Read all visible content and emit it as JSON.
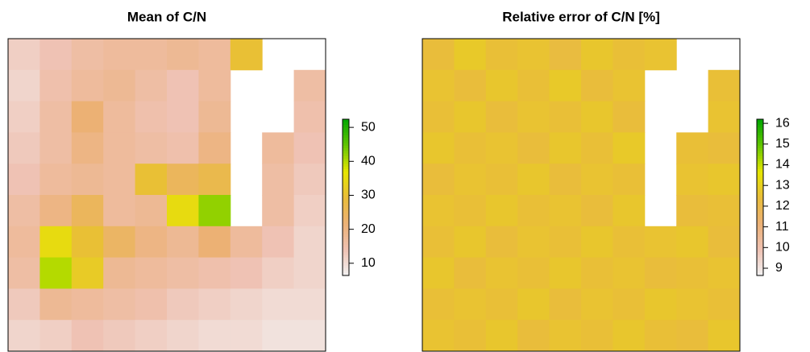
{
  "chart_data": [
    {
      "type": "heatmap",
      "title": "Mean of C/N",
      "zlim": [
        6.4,
        52.4
      ],
      "zticks": [
        10,
        20,
        30,
        40,
        50
      ],
      "colors": [
        "#F2F2F2",
        "#EFC2B3",
        "#ECB176",
        "#E9BD3A",
        "#E6E600",
        "#63C600",
        "#00A600"
      ],
      "values": [
        [
          12,
          14,
          16,
          17,
          17,
          18,
          17,
          30,
          null,
          null
        ],
        [
          11,
          15,
          17,
          18,
          16,
          14,
          17,
          null,
          null,
          16
        ],
        [
          12,
          16,
          22,
          17,
          15,
          14,
          18,
          null,
          null,
          15
        ],
        [
          13,
          16,
          20,
          17,
          16,
          15,
          20,
          null,
          17,
          14
        ],
        [
          14,
          17,
          18,
          17,
          30,
          25,
          27,
          null,
          16,
          13
        ],
        [
          16,
          20,
          25,
          17,
          18,
          35,
          42,
          null,
          16,
          12
        ],
        [
          17,
          35,
          30,
          24,
          20,
          18,
          22,
          17,
          14,
          11
        ],
        [
          16,
          40,
          32,
          18,
          17,
          16,
          15,
          14,
          12,
          11
        ],
        [
          13,
          18,
          17,
          16,
          15,
          13,
          12,
          11,
          10,
          10
        ],
        [
          11,
          12,
          14,
          13,
          12,
          11,
          10,
          10,
          9,
          9
        ]
      ]
    },
    {
      "type": "heatmap",
      "title": "Relative error of C/N [%]",
      "zlim": [
        8.65,
        16.2
      ],
      "zticks": [
        9,
        10,
        11,
        12,
        13,
        14,
        15,
        16
      ],
      "colors": [
        "#F2F2F2",
        "#EFC2B3",
        "#ECB176",
        "#E9BD3A",
        "#E6E600",
        "#63C600",
        "#00A600"
      ],
      "values": [
        [
          12.4,
          12.8,
          12.5,
          12.6,
          12.3,
          12.7,
          12.5,
          12.6,
          null,
          null
        ],
        [
          12.6,
          12.4,
          12.7,
          12.5,
          12.8,
          12.4,
          12.6,
          null,
          null,
          12.5
        ],
        [
          12.5,
          12.7,
          12.4,
          12.6,
          12.5,
          12.7,
          12.4,
          null,
          null,
          12.6
        ],
        [
          12.7,
          12.5,
          12.6,
          12.4,
          12.7,
          12.5,
          12.8,
          null,
          12.5,
          12.4
        ],
        [
          12.4,
          12.6,
          12.5,
          12.7,
          12.4,
          12.6,
          12.5,
          null,
          12.6,
          12.7
        ],
        [
          12.6,
          12.5,
          12.7,
          12.5,
          12.6,
          12.4,
          12.7,
          null,
          12.4,
          12.5
        ],
        [
          12.5,
          12.7,
          12.4,
          12.6,
          12.5,
          12.7,
          12.5,
          12.6,
          12.7,
          12.4
        ],
        [
          12.7,
          12.4,
          12.6,
          12.5,
          12.7,
          12.5,
          12.6,
          12.4,
          12.5,
          12.6
        ],
        [
          12.5,
          12.6,
          12.5,
          12.7,
          12.4,
          12.6,
          12.5,
          12.7,
          12.6,
          12.5
        ],
        [
          12.6,
          12.5,
          12.7,
          12.4,
          12.6,
          12.5,
          12.7,
          12.5,
          12.4,
          12.7
        ]
      ]
    }
  ]
}
